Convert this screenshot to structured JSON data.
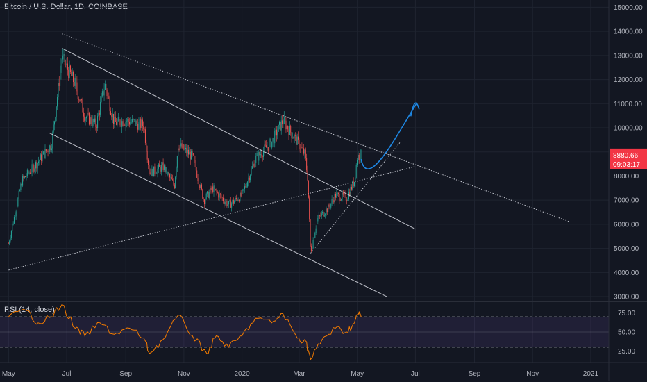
{
  "header": {
    "title": "Bitcoin / U.S. Dollar, 1D, COINBASE"
  },
  "rsi_panel": {
    "title": "RSI (14, close)"
  },
  "price_tag": {
    "last": "8880.66",
    "countdown": "09:03:17"
  },
  "colors": {
    "background": "#131722",
    "up": "#26a69a",
    "down": "#ef5350",
    "rsi_line": "#f57c00",
    "rsi_band": "#7e57c2",
    "drawing": "#1e88e5",
    "trendline": "#e0e3eb",
    "price_tag": "#f23645"
  },
  "chart_data": [
    {
      "type": "candlestick",
      "title": "Bitcoin / U.S. Dollar, 1D, COINBASE",
      "ylim": [
        2800,
        15300
      ],
      "y_ticks": [
        "15000.00",
        "14000.00",
        "13000.00",
        "12000.00",
        "11000.00",
        "10000.00",
        "9000.00",
        "8000.00",
        "7000.00",
        "6000.00",
        "5000.00",
        "4000.00",
        "3000.00"
      ],
      "x_ticks": [
        "May",
        "Jul",
        "Sep",
        "Nov",
        "2020",
        "Mar",
        "May",
        "Jul",
        "Sep",
        "Nov",
        "2021"
      ],
      "grid": true,
      "last_price": 8880.66,
      "approx_close_path": [
        {
          "x": "2019-05-01",
          "y": 5200
        },
        {
          "x": "2019-05-15",
          "y": 7800
        },
        {
          "x": "2019-06-01",
          "y": 8600
        },
        {
          "x": "2019-06-15",
          "y": 9300
        },
        {
          "x": "2019-06-26",
          "y": 12900
        },
        {
          "x": "2019-07-10",
          "y": 11800
        },
        {
          "x": "2019-07-20",
          "y": 10500
        },
        {
          "x": "2019-08-01",
          "y": 10100
        },
        {
          "x": "2019-08-10",
          "y": 11800
        },
        {
          "x": "2019-08-20",
          "y": 10200
        },
        {
          "x": "2019-09-01",
          "y": 10300
        },
        {
          "x": "2019-09-20",
          "y": 10100
        },
        {
          "x": "2019-09-26",
          "y": 8100
        },
        {
          "x": "2019-10-10",
          "y": 8400
        },
        {
          "x": "2019-10-22",
          "y": 7600
        },
        {
          "x": "2019-10-26",
          "y": 9300
        },
        {
          "x": "2019-11-10",
          "y": 8800
        },
        {
          "x": "2019-11-22",
          "y": 7000
        },
        {
          "x": "2019-12-01",
          "y": 7500
        },
        {
          "x": "2019-12-18",
          "y": 6800
        },
        {
          "x": "2020-01-01",
          "y": 7200
        },
        {
          "x": "2020-01-15",
          "y": 8700
        },
        {
          "x": "2020-02-01",
          "y": 9400
        },
        {
          "x": "2020-02-13",
          "y": 10300
        },
        {
          "x": "2020-02-25",
          "y": 9600
        },
        {
          "x": "2020-03-07",
          "y": 8900
        },
        {
          "x": "2020-03-10",
          "y": 7900
        },
        {
          "x": "2020-03-13",
          "y": 4800
        },
        {
          "x": "2020-03-20",
          "y": 6200
        },
        {
          "x": "2020-04-01",
          "y": 6700
        },
        {
          "x": "2020-04-08",
          "y": 7200
        },
        {
          "x": "2020-04-20",
          "y": 7100
        },
        {
          "x": "2020-04-28",
          "y": 7800
        },
        {
          "x": "2020-05-01",
          "y": 8800
        },
        {
          "x": "2020-05-05",
          "y": 8880.66
        }
      ],
      "drawings": [
        {
          "kind": "channel-upper",
          "points": [
            {
              "x": "2019-06-26",
              "y": 13300
            },
            {
              "x": "2020-07-01",
              "y": 5800
            }
          ]
        },
        {
          "kind": "channel-lower",
          "points": [
            {
              "x": "2019-06-12",
              "y": 9800
            },
            {
              "x": "2020-06-01",
              "y": 3000
            }
          ]
        },
        {
          "kind": "long-trend-dotted",
          "points": [
            {
              "x": "2019-06-26",
              "y": 13900
            },
            {
              "x": "2020-12-10",
              "y": 6100
            }
          ]
        },
        {
          "kind": "rising-support-dotted",
          "points": [
            {
              "x": "2019-05-01",
              "y": 4100
            },
            {
              "x": "2020-07-01",
              "y": 8400
            }
          ]
        },
        {
          "kind": "rebound-dotted",
          "points": [
            {
              "x": "2020-03-13",
              "y": 4800
            },
            {
              "x": "2020-06-15",
              "y": 9400
            }
          ]
        },
        {
          "kind": "projection-curve",
          "points": [
            {
              "x": "2020-05-05",
              "y": 8700
            },
            {
              "x": "2020-05-12",
              "y": 8100
            },
            {
              "x": "2020-06-10",
              "y": 9600
            },
            {
              "x": "2020-07-02",
              "y": 11000
            }
          ]
        }
      ]
    },
    {
      "type": "line",
      "title": "RSI (14, close)",
      "ylim": [
        10,
        90
      ],
      "y_ticks": [
        "75.00",
        "50.00",
        "25.00"
      ],
      "bands": [
        30,
        70
      ],
      "series": [
        {
          "name": "RSI (14, close)",
          "points": [
            {
              "x": "2019-05-01",
              "y": 70
            },
            {
              "x": "2019-05-20",
              "y": 78
            },
            {
              "x": "2019-06-01",
              "y": 62
            },
            {
              "x": "2019-06-15",
              "y": 70
            },
            {
              "x": "2019-06-26",
              "y": 86
            },
            {
              "x": "2019-07-10",
              "y": 55
            },
            {
              "x": "2019-07-20",
              "y": 45
            },
            {
              "x": "2019-08-05",
              "y": 62
            },
            {
              "x": "2019-08-20",
              "y": 47
            },
            {
              "x": "2019-09-05",
              "y": 55
            },
            {
              "x": "2019-09-20",
              "y": 42
            },
            {
              "x": "2019-09-26",
              "y": 22
            },
            {
              "x": "2019-10-10",
              "y": 40
            },
            {
              "x": "2019-10-26",
              "y": 72
            },
            {
              "x": "2019-11-10",
              "y": 45
            },
            {
              "x": "2019-11-25",
              "y": 22
            },
            {
              "x": "2019-12-05",
              "y": 45
            },
            {
              "x": "2019-12-18",
              "y": 30
            },
            {
              "x": "2020-01-01",
              "y": 45
            },
            {
              "x": "2020-01-15",
              "y": 68
            },
            {
              "x": "2020-02-01",
              "y": 62
            },
            {
              "x": "2020-02-13",
              "y": 74
            },
            {
              "x": "2020-02-28",
              "y": 42
            },
            {
              "x": "2020-03-08",
              "y": 38
            },
            {
              "x": "2020-03-13",
              "y": 14
            },
            {
              "x": "2020-03-25",
              "y": 40
            },
            {
              "x": "2020-04-08",
              "y": 55
            },
            {
              "x": "2020-04-20",
              "y": 50
            },
            {
              "x": "2020-04-28",
              "y": 62
            },
            {
              "x": "2020-05-02",
              "y": 75
            },
            {
              "x": "2020-05-05",
              "y": 70
            }
          ]
        }
      ]
    }
  ]
}
